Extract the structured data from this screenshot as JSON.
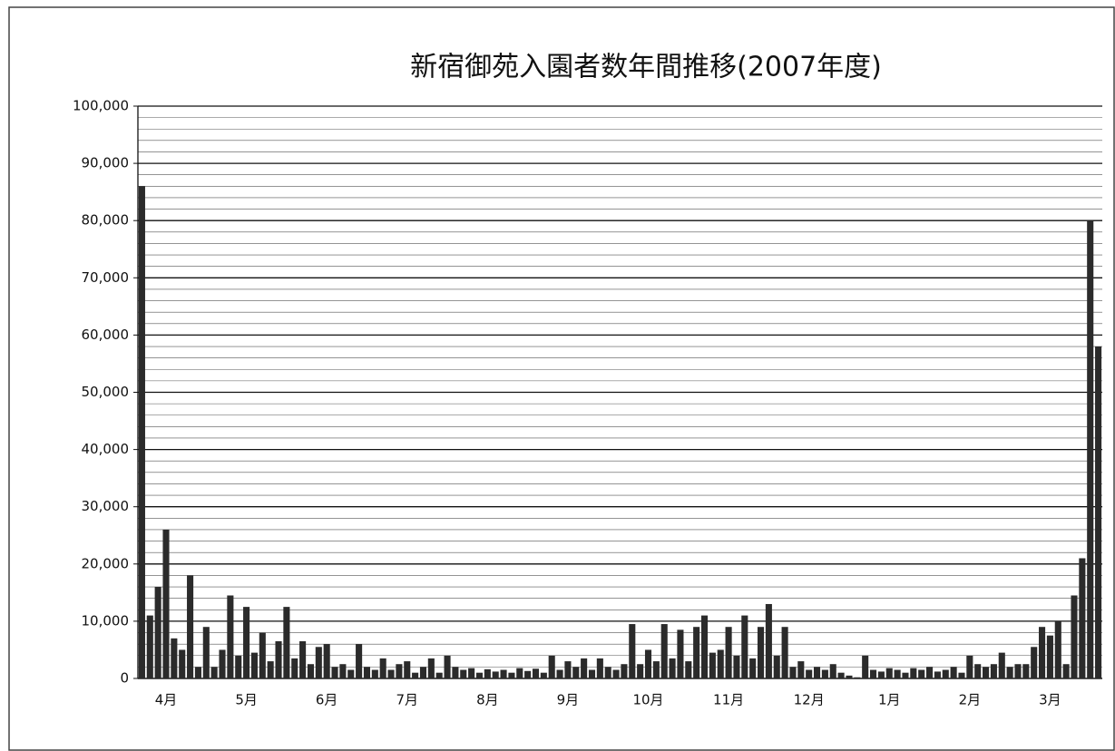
{
  "chart_data": {
    "type": "bar",
    "title": "新宿御苑入園者数年間推移(2007年度)",
    "categories": [
      null,
      null,
      null,
      "4月",
      null,
      null,
      null,
      null,
      null,
      null,
      null,
      null,
      null,
      "5月",
      null,
      null,
      null,
      null,
      null,
      null,
      null,
      null,
      null,
      "6月",
      null,
      null,
      null,
      null,
      null,
      null,
      null,
      null,
      null,
      "7月",
      null,
      null,
      null,
      null,
      null,
      null,
      null,
      null,
      null,
      "8月",
      null,
      null,
      null,
      null,
      null,
      null,
      null,
      null,
      null,
      "9月",
      null,
      null,
      null,
      null,
      null,
      null,
      null,
      null,
      null,
      "10月",
      null,
      null,
      null,
      null,
      null,
      null,
      null,
      null,
      null,
      "11月",
      null,
      null,
      null,
      null,
      null,
      null,
      null,
      null,
      null,
      "12月",
      null,
      null,
      null,
      null,
      null,
      null,
      null,
      null,
      null,
      "1月",
      null,
      null,
      null,
      null,
      null,
      null,
      null,
      null,
      null,
      "2月",
      null,
      null,
      null,
      null,
      null,
      null,
      null,
      null,
      null,
      "3月",
      null,
      null,
      null,
      null,
      null,
      null
    ],
    "values": [
      86000,
      11000,
      16000,
      26000,
      7000,
      5000,
      18000,
      2000,
      9000,
      2000,
      5000,
      14500,
      4000,
      12500,
      4500,
      8000,
      3000,
      6500,
      12500,
      3500,
      6500,
      2500,
      5500,
      6000,
      2000,
      2500,
      1500,
      6000,
      2000,
      1500,
      3500,
      1500,
      2500,
      3000,
      1000,
      2000,
      3500,
      1000,
      4000,
      2000,
      1500,
      1800,
      1000,
      1600,
      1200,
      1500,
      1000,
      1800,
      1300,
      1700,
      1000,
      4000,
      1500,
      3000,
      2000,
      3500,
      1500,
      3500,
      2000,
      1500,
      2500,
      9500,
      2500,
      5000,
      3000,
      9500,
      3500,
      8500,
      3000,
      9000,
      11000,
      4500,
      5000,
      9000,
      4000,
      11000,
      3500,
      9000,
      13000,
      4000,
      9000,
      2000,
      3000,
      1500,
      2000,
      1500,
      2500,
      1000,
      500,
      200,
      4000,
      1500,
      1200,
      1800,
      1500,
      1000,
      1800,
      1500,
      2000,
      1200,
      1500,
      2000,
      1000,
      4000,
      2500,
      2000,
      2500,
      4500,
      2000,
      2500,
      2500,
      5500,
      9000,
      7500,
      10000,
      2500,
      14500,
      21000,
      80000,
      58000
    ],
    "color": "#2b2b2b",
    "ylim": [
      0,
      100000
    ],
    "yticks": [
      0,
      {
        "value": 10000,
        "label": "10,000"
      },
      {
        "value": 20000,
        "label": "20,000"
      },
      {
        "value": 30000,
        "label": "30,000"
      },
      {
        "value": 40000,
        "label": "40,000"
      },
      {
        "value": 50000,
        "label": "50,000"
      },
      {
        "value": 60000,
        "label": "60,000"
      },
      {
        "value": 70000,
        "label": "70,000"
      },
      {
        "value": 80000,
        "label": "80,000"
      },
      {
        "value": 90000,
        "label": "90,000"
      },
      {
        "value": 100000,
        "label": "100,000"
      }
    ],
    "grid": true
  }
}
